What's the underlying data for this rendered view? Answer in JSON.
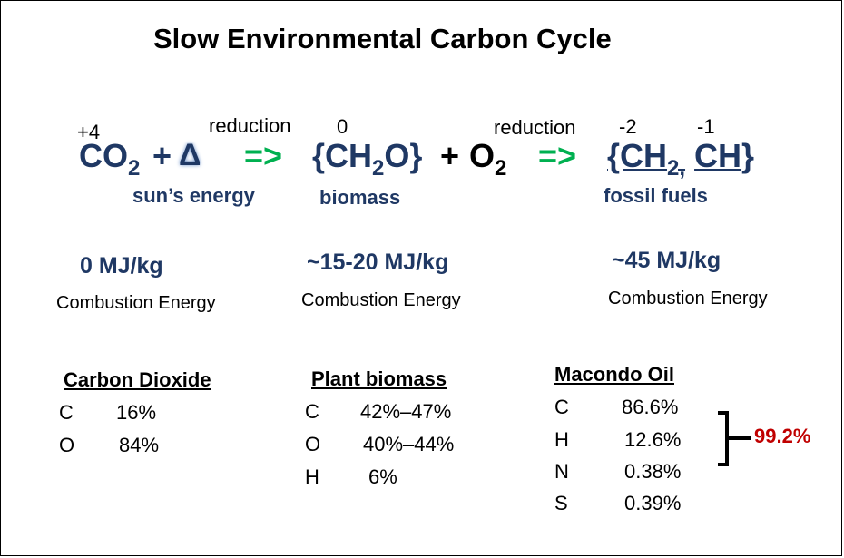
{
  "title": "Slow Environmental Carbon Cycle",
  "equation": {
    "ox_co2": "+4",
    "ox_biomass": "0",
    "ox_ch2": "-2",
    "ox_ch": "-1",
    "reduction1": "reduction",
    "reduction2": "reduction",
    "co2_main": "CO",
    "co2_sub": "2",
    "plus1": "+",
    "delta": "Δ",
    "arrow1": "=>",
    "biomass_open": "{CH",
    "biomass_sub": "2",
    "biomass_close": "O}",
    "plus2": "+",
    "o2_main": "O",
    "o2_sub": "2",
    "arrow2": "=>",
    "ff_open": "{CH",
    "ff_sub": "2,",
    "ff_ch": "CH",
    "ff_close": "}",
    "label_sun": "sun’s energy",
    "label_biomass": "biomass",
    "label_fossil": "fossil fuels"
  },
  "energies": [
    {
      "value": "0 MJ/kg",
      "label": "Combustion Energy"
    },
    {
      "value": "~15-20 MJ/kg",
      "label": "Combustion Energy"
    },
    {
      "value": "~45 MJ/kg",
      "label": "Combustion Energy"
    }
  ],
  "tables": {
    "co2": {
      "header": "Carbon Dioxide",
      "rows": [
        {
          "el": "C",
          "val": "16%"
        },
        {
          "el": "O",
          "val": "84%"
        }
      ]
    },
    "biomass": {
      "header": "Plant biomass",
      "rows": [
        {
          "el": "C",
          "val": "42%–47%"
        },
        {
          "el": "O",
          "val": "40%–44%"
        },
        {
          "el": "H",
          "val": "6%"
        }
      ]
    },
    "oil": {
      "header": "Macondo Oil",
      "rows": [
        {
          "el": "C",
          "val": "86.6%"
        },
        {
          "el": "H",
          "val": "12.6%"
        },
        {
          "el": "N",
          "val": "0.38%"
        },
        {
          "el": "S",
          "val": "0.39%"
        }
      ]
    }
  },
  "bracket_total": "99.2%",
  "colors": {
    "navy": "#1f3864",
    "green": "#00b050",
    "red": "#c00000"
  }
}
